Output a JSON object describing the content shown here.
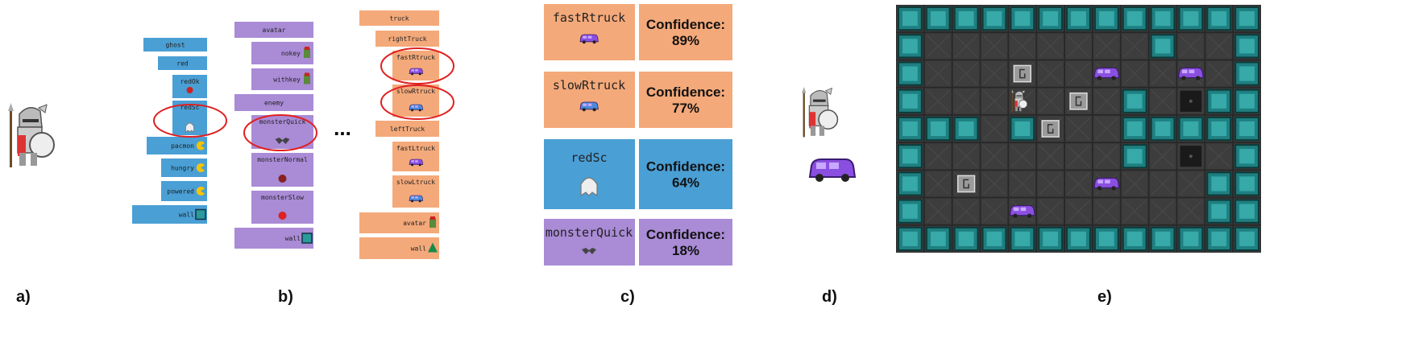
{
  "panel_labels": [
    "a)",
    "b)",
    "c)",
    "d)",
    "e)"
  ],
  "panel_b": {
    "columns": [
      {
        "nodes": [
          {
            "label": "ghost"
          },
          {
            "label": "red"
          },
          {
            "label": "redOk"
          },
          {
            "label": "redSc"
          },
          {
            "label": "pacmon"
          },
          {
            "label": "hungry"
          },
          {
            "label": "powered"
          },
          {
            "label": "wall"
          }
        ]
      },
      {
        "nodes": [
          {
            "label": "avatar"
          },
          {
            "label": "nokey"
          },
          {
            "label": "withkey"
          },
          {
            "label": "enemy"
          },
          {
            "label": "monsterQuick"
          },
          {
            "label": "monsterNormal"
          },
          {
            "label": "monsterSlow"
          },
          {
            "label": "wall"
          }
        ]
      },
      {
        "nodes": [
          {
            "label": "truck"
          },
          {
            "label": "rightTruck"
          },
          {
            "label": "fastRtruck"
          },
          {
            "label": "slowRtruck"
          },
          {
            "label": "leftTruck"
          },
          {
            "label": "fastLtruck"
          },
          {
            "label": "slowLtruck"
          },
          {
            "label": "avatar"
          },
          {
            "label": "wall"
          }
        ]
      }
    ],
    "ellipsis": "..."
  },
  "panel_c": {
    "cards": [
      {
        "name": "fastRtruck",
        "label": "Confidence:",
        "confidence": "89%"
      },
      {
        "name": "slowRtruck",
        "label": "Confidence:",
        "confidence": "77%"
      },
      {
        "name": "redSc",
        "label": "Confidence:",
        "confidence": "64%"
      },
      {
        "name": "monsterQuick",
        "label": "Confidence:",
        "confidence": "18%"
      }
    ]
  }
}
